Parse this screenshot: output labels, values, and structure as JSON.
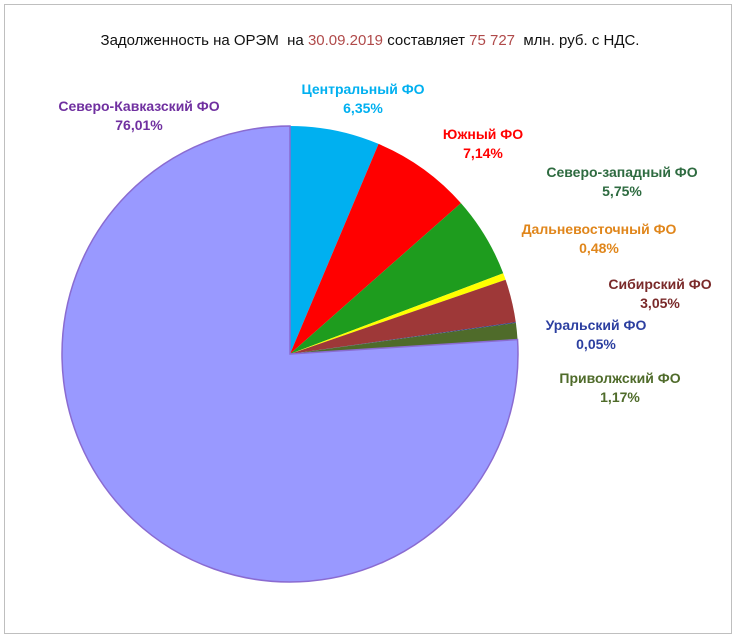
{
  "title": {
    "prefix": "Задолженность на ОРЭМ  на ",
    "date": "30.09.2019",
    "middle": " составляет ",
    "amount": "75 727",
    "suffix": "  млн. руб. с НДС.",
    "highlight_color": "#b04a4a"
  },
  "chart_data": {
    "type": "pie",
    "start_angle_deg": 0,
    "direction": "clockwise",
    "slices": [
      {
        "label": "Центральный ФО",
        "value": 6.35,
        "value_label": "6,35%",
        "color": "#00b0f0",
        "label_color": "#00b0f0"
      },
      {
        "label": "Южный ФО",
        "value": 7.14,
        "value_label": "7,14%",
        "color": "#ff0000",
        "label_color": "#ff0000"
      },
      {
        "label": "Северо-западный ФО",
        "value": 5.75,
        "value_label": "5,75%",
        "color": "#1e9c1e",
        "label_color": "#2e6b40"
      },
      {
        "label": "Дальневосточный ФО",
        "value": 0.48,
        "value_label": "0,48%",
        "color": "#ffff00",
        "label_color": "#e0861b"
      },
      {
        "label": "Сибирский ФО",
        "value": 3.05,
        "value_label": "3,05%",
        "color": "#9e3838",
        "label_color": "#7a2a2a"
      },
      {
        "label": "Уральский ФО",
        "value": 0.05,
        "value_label": "0,05%",
        "color": "#1f3a93",
        "label_color": "#2c3fa0"
      },
      {
        "label": "Приволжский ФО",
        "value": 1.17,
        "value_label": "1,17%",
        "color": "#4f6b2a",
        "label_color": "#4f6b2a"
      },
      {
        "label": "Северо-Кавказский ФО",
        "value": 76.01,
        "value_label": "76,01%",
        "color": "#9999ff",
        "label_color": "#7030a0"
      }
    ]
  }
}
